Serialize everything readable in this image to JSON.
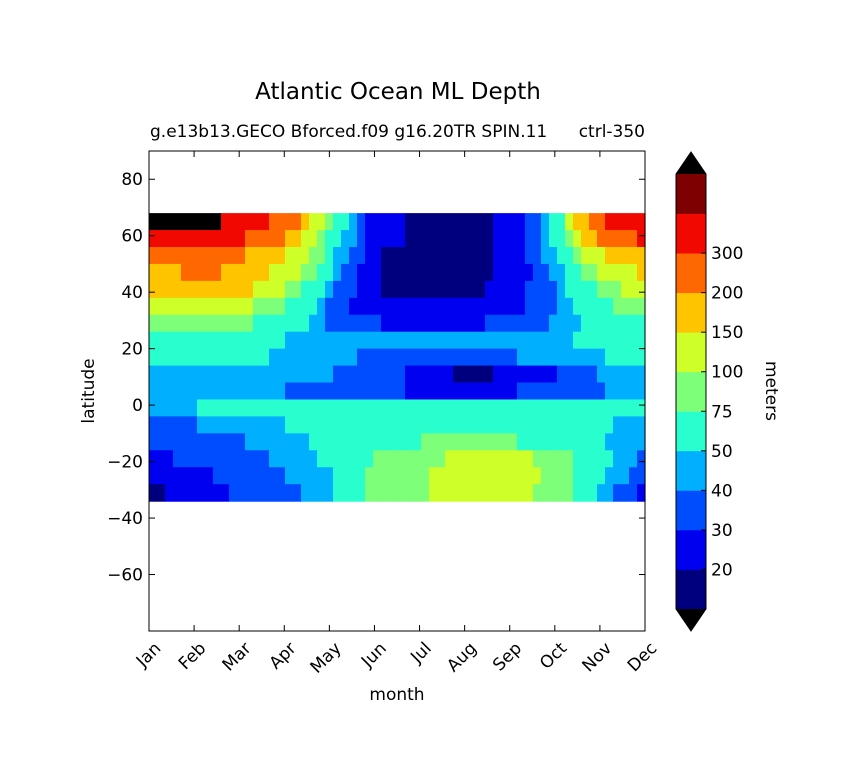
{
  "chart_data": {
    "type": "heatmap",
    "title": "Atlantic Ocean ML Depth",
    "subtitle_left": "g.e13b13.GECO Bforced.f09 g16.20TR SPIN.11",
    "subtitle_right": "ctrl-350",
    "xlabel": "month",
    "ylabel": "latitude",
    "x_categories": [
      "Jan",
      "Feb",
      "Mar",
      "Apr",
      "May",
      "Jun",
      "Jul",
      "Aug",
      "Sep",
      "Oct",
      "Nov",
      "Dec"
    ],
    "ylim": [
      -80,
      90
    ],
    "yticks": [
      -60,
      -40,
      -20,
      0,
      20,
      40,
      60,
      80
    ],
    "data_lat_range": [
      -34,
      68
    ],
    "grid": false,
    "colorbar": {
      "label": "meters",
      "levels": [
        10,
        20,
        30,
        40,
        50,
        75,
        100,
        150,
        200,
        300,
        400
      ],
      "tick_labels": [
        "20",
        "30",
        "40",
        "50",
        "75",
        "100",
        "150",
        "200",
        "300"
      ],
      "colors": [
        "#00007f",
        "#0000f1",
        "#004cff",
        "#00b0ff",
        "#29ffce",
        "#7dff7a",
        "#ceff29",
        "#ffc400",
        "#ff6800",
        "#f10800",
        "#7f0000"
      ],
      "under_color": "#000000",
      "over_color": "#000000"
    },
    "bands": [
      {
        "lat": [
          62,
          68
        ],
        "values": [
          420,
          420,
          380,
          250,
          60,
          22,
          18,
          18,
          22,
          55,
          300,
          420
        ]
      },
      {
        "lat": [
          56,
          62
        ],
        "values": [
          320,
          330,
          300,
          200,
          55,
          22,
          18,
          18,
          22,
          55,
          220,
          320
        ]
      },
      {
        "lat": [
          50,
          56
        ],
        "values": [
          220,
          220,
          200,
          150,
          50,
          20,
          18,
          18,
          22,
          50,
          150,
          200
        ]
      },
      {
        "lat": [
          44,
          50
        ],
        "values": [
          180,
          210,
          190,
          120,
          45,
          20,
          18,
          18,
          22,
          45,
          110,
          160
        ]
      },
      {
        "lat": [
          38,
          44
        ],
        "values": [
          160,
          180,
          160,
          90,
          40,
          20,
          18,
          18,
          25,
          42,
          85,
          130
        ]
      },
      {
        "lat": [
          32,
          38
        ],
        "values": [
          120,
          130,
          110,
          70,
          35,
          22,
          22,
          22,
          28,
          40,
          70,
          100
        ]
      },
      {
        "lat": [
          26,
          32
        ],
        "values": [
          85,
          90,
          80,
          60,
          35,
          30,
          28,
          28,
          35,
          42,
          60,
          78
        ]
      },
      {
        "lat": [
          20,
          26
        ],
        "values": [
          62,
          65,
          60,
          50,
          42,
          40,
          40,
          40,
          42,
          48,
          55,
          60
        ]
      },
      {
        "lat": [
          14,
          20
        ],
        "values": [
          55,
          55,
          52,
          48,
          42,
          38,
          38,
          38,
          40,
          45,
          50,
          52
        ]
      },
      {
        "lat": [
          8,
          14
        ],
        "values": [
          45,
          45,
          44,
          42,
          40,
          35,
          25,
          18,
          22,
          30,
          42,
          45
        ]
      },
      {
        "lat": [
          2,
          8
        ],
        "values": [
          42,
          42,
          42,
          40,
          38,
          33,
          28,
          28,
          30,
          35,
          40,
          42
        ]
      },
      {
        "lat": [
          -4,
          2
        ],
        "values": [
          48,
          50,
          52,
          55,
          55,
          55,
          55,
          55,
          55,
          55,
          52,
          50
        ]
      },
      {
        "lat": [
          -10,
          -4
        ],
        "values": [
          35,
          40,
          45,
          50,
          55,
          60,
          60,
          60,
          60,
          58,
          52,
          42
        ]
      },
      {
        "lat": [
          -16,
          -10
        ],
        "values": [
          30,
          35,
          40,
          45,
          55,
          70,
          75,
          75,
          75,
          65,
          50,
          38
        ]
      },
      {
        "lat": [
          -22,
          -16
        ],
        "values": [
          28,
          33,
          38,
          42,
          55,
          80,
          90,
          110,
          110,
          85,
          55,
          35
        ]
      },
      {
        "lat": [
          -28,
          -22
        ],
        "values": [
          22,
          28,
          35,
          40,
          50,
          85,
          95,
          120,
          120,
          90,
          50,
          30
        ]
      },
      {
        "lat": [
          -34,
          -28
        ],
        "values": [
          18,
          25,
          32,
          38,
          48,
          85,
          95,
          120,
          115,
          85,
          45,
          25
        ]
      }
    ]
  }
}
